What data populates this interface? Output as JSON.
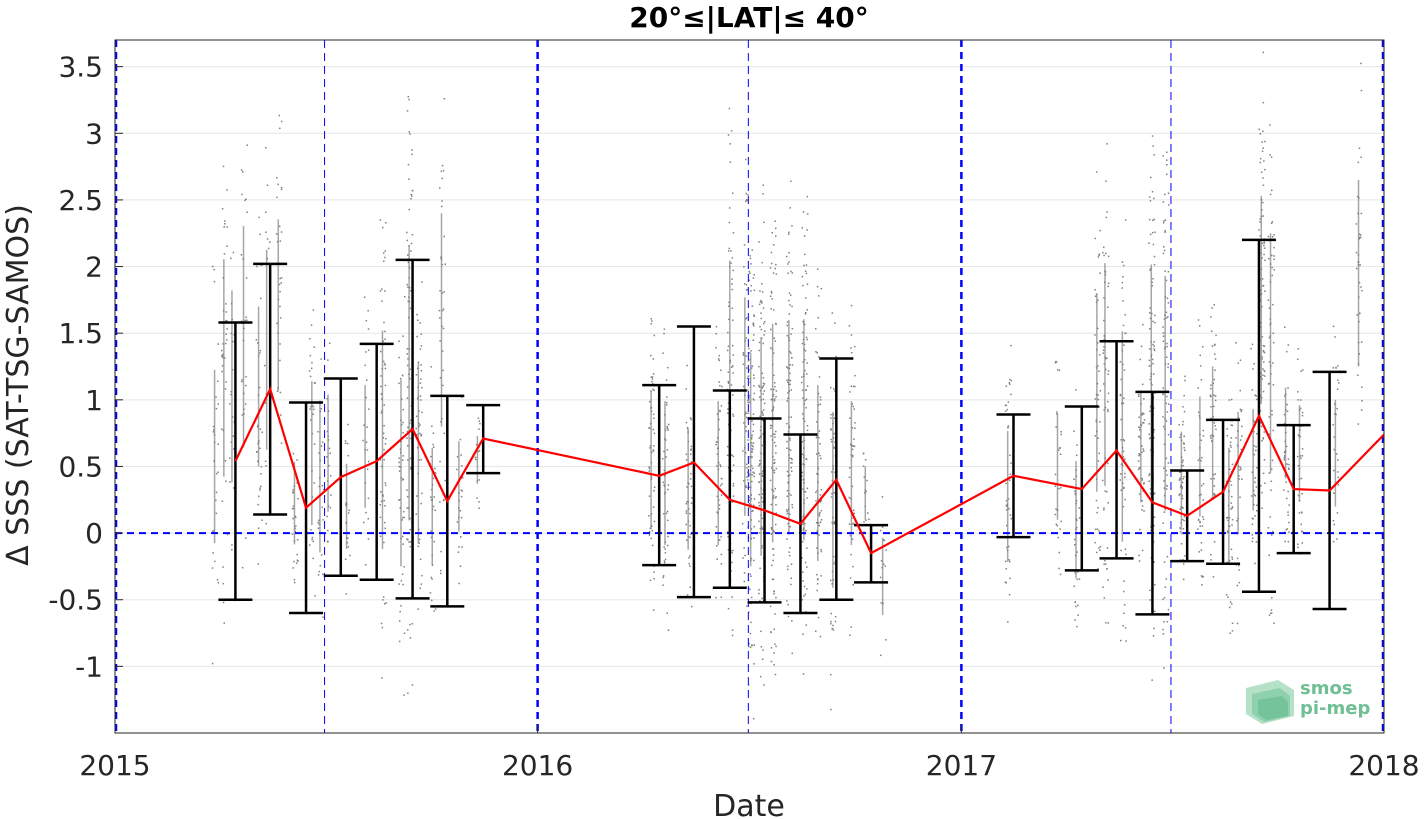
{
  "chart_data": {
    "type": "scatter",
    "title": "20°≤|LAT|≤ 40°",
    "xlabel": "Date",
    "ylabel": "Δ SSS (SAT-TSG-SAMOS)",
    "xlim": [
      "2015-01-01",
      "2018-01-01"
    ],
    "ylim": [
      -1.5,
      3.7
    ],
    "x_ticks": [
      "2015-01-01",
      "2016-01-01",
      "2017-01-01",
      "2018-01-01"
    ],
    "x_tick_labels": [
      "2015",
      "2016",
      "2017",
      "2018"
    ],
    "y_ticks": [
      -1,
      -0.5,
      0,
      0.5,
      1,
      1.5,
      2,
      2.5,
      3,
      3.5
    ],
    "y_tick_labels": [
      "-1",
      "-0.5",
      "0",
      "0.5",
      "1",
      "1.5",
      "2",
      "2.5",
      "3",
      "3.5"
    ],
    "grid": true,
    "reference_lines": {
      "zero_line": 0,
      "year_boundaries": [
        "2015-01-01",
        "2016-01-01",
        "2017-01-01",
        "2018-01-01"
      ],
      "mid_year_lines": [
        "2015-07-01",
        "2016-07-01",
        "2017-07-01"
      ]
    },
    "colors": {
      "mean_line": "#ff0000",
      "error_bar": "#000000",
      "scatter": "#808080",
      "reference": "#0000ff",
      "axis": "#262626",
      "grid": "#e6e6e6"
    },
    "series": [
      {
        "type": "line_with_error_bars",
        "x": [
          "2015-04-15",
          "2015-05-15",
          "2015-06-15",
          "2015-07-15",
          "2015-08-15",
          "2015-09-15",
          "2015-10-15",
          "2015-11-15",
          "2016-04-15",
          "2016-05-15",
          "2016-06-15",
          "2016-07-15",
          "2016-08-15",
          "2016-09-15",
          "2016-10-15",
          "2017-02-15",
          "2017-04-15",
          "2017-05-15",
          "2017-06-15",
          "2017-07-15",
          "2017-08-15",
          "2017-09-15",
          "2017-10-15",
          "2017-11-15",
          "2018-01-01"
        ],
        "mean": [
          0.54,
          1.08,
          0.19,
          0.42,
          0.54,
          0.78,
          0.24,
          0.71,
          0.43,
          0.53,
          0.25,
          0.17,
          0.07,
          0.4,
          -0.15,
          0.43,
          0.33,
          0.62,
          0.23,
          0.13,
          0.31,
          0.88,
          0.33,
          0.32,
          0.74
        ],
        "lower": [
          -0.5,
          0.14,
          -0.6,
          -0.32,
          -0.35,
          -0.49,
          -0.55,
          0.45,
          -0.24,
          -0.48,
          -0.41,
          -0.52,
          -0.6,
          -0.5,
          -0.37,
          -0.03,
          -0.28,
          -0.19,
          -0.61,
          -0.21,
          -0.23,
          -0.44,
          -0.15,
          -0.57,
          null
        ],
        "upper": [
          1.58,
          2.02,
          0.98,
          1.16,
          1.42,
          2.05,
          1.03,
          0.96,
          1.11,
          1.55,
          1.07,
          0.86,
          0.74,
          1.31,
          0.06,
          0.89,
          0.95,
          1.44,
          1.06,
          0.47,
          0.85,
          2.2,
          0.81,
          1.21,
          null
        ]
      }
    ],
    "scatter_columns": [
      {
        "x": "2015-03-28",
        "min": -1.05,
        "max": 2.2,
        "density": 30
      },
      {
        "x": "2015-04-05",
        "min": -0.8,
        "max": 3.28,
        "density": 40
      },
      {
        "x": "2015-04-12",
        "min": -0.7,
        "max": 2.9,
        "density": 25
      },
      {
        "x": "2015-04-22",
        "min": -0.6,
        "max": 3.55,
        "density": 30
      },
      {
        "x": "2015-05-05",
        "min": -0.4,
        "max": 2.6,
        "density": 35
      },
      {
        "x": "2015-05-12",
        "min": -0.5,
        "max": 3.25,
        "density": 20
      },
      {
        "x": "2015-05-22",
        "min": 0.1,
        "max": 3.32,
        "density": 30
      },
      {
        "x": "2015-06-05",
        "min": -0.55,
        "max": 1.0,
        "density": 30
      },
      {
        "x": "2015-06-20",
        "min": -0.75,
        "max": 1.95,
        "density": 30
      },
      {
        "x": "2015-06-27",
        "min": -1.0,
        "max": 1.85,
        "density": 25
      },
      {
        "x": "2015-07-04",
        "min": -0.5,
        "max": 1.7,
        "density": 20
      },
      {
        "x": "2015-07-20",
        "min": -0.6,
        "max": 1.0,
        "density": 20
      },
      {
        "x": "2015-08-05",
        "min": -0.5,
        "max": 1.8,
        "density": 25
      },
      {
        "x": "2015-08-20",
        "min": -1.35,
        "max": 2.75,
        "density": 60
      },
      {
        "x": "2015-09-05",
        "min": -1.3,
        "max": 2.2,
        "density": 50
      },
      {
        "x": "2015-09-12",
        "min": -1.45,
        "max": 3.7,
        "density": 90
      },
      {
        "x": "2015-09-20",
        "min": -1.1,
        "max": 2.3,
        "density": 50
      },
      {
        "x": "2015-10-02",
        "min": -0.9,
        "max": 1.3,
        "density": 30
      },
      {
        "x": "2015-10-10",
        "min": -0.4,
        "max": 3.6,
        "density": 40
      },
      {
        "x": "2015-10-25",
        "min": -0.5,
        "max": 1.2,
        "density": 25
      },
      {
        "x": "2015-11-10",
        "min": 0.1,
        "max": 1.0,
        "density": 15
      },
      {
        "x": "2016-04-08",
        "min": -0.75,
        "max": 1.85,
        "density": 60
      },
      {
        "x": "2016-04-20",
        "min": -0.9,
        "max": 1.8,
        "density": 50
      },
      {
        "x": "2016-05-10",
        "min": -0.8,
        "max": 1.45,
        "density": 45
      },
      {
        "x": "2016-06-05",
        "min": -0.9,
        "max": 1.8,
        "density": 50
      },
      {
        "x": "2016-06-15",
        "min": -1.35,
        "max": 3.5,
        "density": 80
      },
      {
        "x": "2016-06-28",
        "min": -1.1,
        "max": 3.0,
        "density": 60
      },
      {
        "x": "2016-07-03",
        "min": -1.45,
        "max": 2.55,
        "density": 120
      },
      {
        "x": "2016-07-12",
        "min": -1.4,
        "max": 2.7,
        "density": 120
      },
      {
        "x": "2016-07-22",
        "min": -1.3,
        "max": 2.8,
        "density": 110
      },
      {
        "x": "2016-08-05",
        "min": -1.2,
        "max": 2.8,
        "density": 100
      },
      {
        "x": "2016-08-18",
        "min": -1.3,
        "max": 2.85,
        "density": 100
      },
      {
        "x": "2016-08-30",
        "min": -1.2,
        "max": 2.1,
        "density": 70
      },
      {
        "x": "2016-09-12",
        "min": -1.4,
        "max": 1.9,
        "density": 60
      },
      {
        "x": "2016-09-28",
        "min": -0.9,
        "max": 1.8,
        "density": 50
      },
      {
        "x": "2016-10-10",
        "min": -0.2,
        "max": 0.8,
        "density": 15
      },
      {
        "x": "2016-10-25",
        "min": -1.05,
        "max": 0.4,
        "density": 15
      },
      {
        "x": "2017-02-10",
        "min": -0.95,
        "max": 1.5,
        "density": 45
      },
      {
        "x": "2017-03-25",
        "min": -0.5,
        "max": 1.5,
        "density": 30
      },
      {
        "x": "2017-04-10",
        "min": -1.0,
        "max": 1.2,
        "density": 35
      },
      {
        "x": "2017-04-28",
        "min": -0.8,
        "max": 2.9,
        "density": 50
      },
      {
        "x": "2017-05-05",
        "min": -0.9,
        "max": 3.28,
        "density": 60
      },
      {
        "x": "2017-05-20",
        "min": -1.25,
        "max": 2.7,
        "density": 55
      },
      {
        "x": "2017-06-05",
        "min": -0.4,
        "max": 1.7,
        "density": 50
      },
      {
        "x": "2017-06-14",
        "min": -1.45,
        "max": 3.5,
        "density": 110
      },
      {
        "x": "2017-06-26",
        "min": -1.15,
        "max": 3.25,
        "density": 80
      },
      {
        "x": "2017-07-10",
        "min": -0.5,
        "max": 1.3,
        "density": 60
      },
      {
        "x": "2017-07-26",
        "min": -0.55,
        "max": 1.7,
        "density": 40
      },
      {
        "x": "2017-08-06",
        "min": -0.5,
        "max": 2.0,
        "density": 50
      },
      {
        "x": "2017-08-20",
        "min": -0.9,
        "max": 1.3,
        "density": 50
      },
      {
        "x": "2017-08-28",
        "min": -0.7,
        "max": 1.6,
        "density": 35
      },
      {
        "x": "2017-09-10",
        "min": -0.4,
        "max": 1.5,
        "density": 40
      },
      {
        "x": "2017-09-17",
        "min": -0.2,
        "max": 3.7,
        "density": 90
      },
      {
        "x": "2017-09-25",
        "min": -0.9,
        "max": 3.6,
        "density": 60
      },
      {
        "x": "2017-10-08",
        "min": -0.1,
        "max": 1.6,
        "density": 40
      },
      {
        "x": "2017-10-20",
        "min": -0.3,
        "max": 1.5,
        "density": 40
      },
      {
        "x": "2017-11-20",
        "min": -0.4,
        "max": 1.6,
        "density": 30
      },
      {
        "x": "2017-12-10",
        "min": 0.2,
        "max": 3.7,
        "density": 40
      }
    ]
  },
  "logo": {
    "line1": "smos",
    "line2": "pi-mep"
  }
}
